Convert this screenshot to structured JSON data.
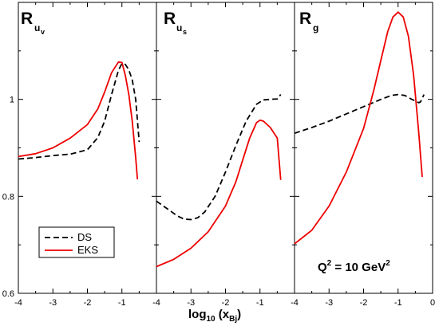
{
  "chart_data": [
    {
      "type": "line",
      "title_main": "R",
      "title_sub": "u",
      "title_subsub": "v",
      "xlim": [
        -4,
        0
      ],
      "ylim": [
        0.6,
        1.2
      ],
      "series": [
        {
          "name": "DS",
          "color": "#000000",
          "dash": true,
          "x": [
            -4.0,
            -3.5,
            -3.0,
            -2.5,
            -2.0,
            -1.7,
            -1.5,
            -1.3,
            -1.1,
            -1.0,
            -0.9,
            -0.8,
            -0.7,
            -0.6,
            -0.5
          ],
          "y": [
            0.877,
            0.88,
            0.884,
            0.887,
            0.896,
            0.921,
            0.955,
            1.01,
            1.06,
            1.074,
            1.072,
            1.061,
            1.04,
            1.0,
            0.912
          ]
        },
        {
          "name": "EKS",
          "color": "#ee0000",
          "dash": false,
          "x": [
            -4.0,
            -3.5,
            -3.0,
            -2.5,
            -2.0,
            -1.7,
            -1.5,
            -1.3,
            -1.1,
            -1.0,
            -0.9,
            -0.8,
            -0.7,
            -0.6,
            -0.55
          ],
          "y": [
            0.882,
            0.888,
            0.9,
            0.92,
            0.948,
            0.98,
            1.015,
            1.055,
            1.077,
            1.076,
            1.049,
            1.01,
            0.955,
            0.88,
            0.835
          ]
        }
      ]
    },
    {
      "type": "line",
      "title_main": "R",
      "title_sub": "u",
      "title_subsub": "s",
      "xlim": [
        -4,
        0
      ],
      "ylim": [
        0.6,
        1.2
      ],
      "series": [
        {
          "name": "DS",
          "color": "#000000",
          "dash": true,
          "x": [
            -4.0,
            -3.7,
            -3.4,
            -3.2,
            -3.0,
            -2.8,
            -2.6,
            -2.3,
            -2.0,
            -1.7,
            -1.4,
            -1.1,
            -0.9,
            -0.7,
            -0.5,
            -0.4
          ],
          "y": [
            0.79,
            0.775,
            0.76,
            0.753,
            0.752,
            0.756,
            0.768,
            0.8,
            0.85,
            0.905,
            0.955,
            0.99,
            0.999,
            1.0,
            1.001,
            1.01
          ]
        },
        {
          "name": "EKS",
          "color": "#ee0000",
          "dash": false,
          "x": [
            -4.0,
            -3.5,
            -3.0,
            -2.5,
            -2.0,
            -1.7,
            -1.5,
            -1.3,
            -1.1,
            -1.0,
            -0.9,
            -0.7,
            -0.5,
            -0.4
          ],
          "y": [
            0.655,
            0.67,
            0.693,
            0.727,
            0.78,
            0.83,
            0.875,
            0.92,
            0.952,
            0.957,
            0.955,
            0.942,
            0.92,
            0.834
          ]
        }
      ]
    },
    {
      "type": "line",
      "title_main": "R",
      "title_sub": "g",
      "xlim": [
        -4,
        0
      ],
      "ylim": [
        0.6,
        1.2
      ],
      "series": [
        {
          "name": "DS",
          "color": "#000000",
          "dash": true,
          "x": [
            -4.0,
            -3.5,
            -3.0,
            -2.5,
            -2.0,
            -1.5,
            -1.2,
            -1.0,
            -0.8,
            -0.6,
            -0.5,
            -0.4,
            -0.35,
            -0.25
          ],
          "y": [
            0.93,
            0.942,
            0.955,
            0.97,
            0.985,
            1.0,
            1.008,
            1.01,
            1.008,
            1.0,
            0.997,
            0.993,
            0.995,
            1.01
          ]
        },
        {
          "name": "EKS",
          "color": "#ee0000",
          "dash": false,
          "x": [
            -4.0,
            -3.5,
            -3.0,
            -2.5,
            -2.0,
            -1.7,
            -1.5,
            -1.3,
            -1.15,
            -1.0,
            -0.85,
            -0.7,
            -0.55,
            -0.4,
            -0.3
          ],
          "y": [
            0.702,
            0.73,
            0.78,
            0.85,
            0.94,
            1.02,
            1.08,
            1.14,
            1.17,
            1.18,
            1.17,
            1.13,
            1.05,
            0.93,
            0.84
          ]
        }
      ]
    }
  ],
  "y_ticks": [
    "0.6",
    "0.8",
    "1"
  ],
  "x_ticks_panels": [
    [
      "-4",
      "-3",
      "-2",
      "-1"
    ],
    [
      "-4",
      "-3",
      "-2",
      "-1"
    ],
    [
      "-4",
      "-3",
      "-2",
      "-1",
      "0"
    ]
  ],
  "x_axis_label": {
    "main": "log",
    "sub1": "10",
    "paren_open": " (x",
    "sub2": "Bj",
    "paren_close": ")"
  },
  "legend": [
    {
      "label": "DS",
      "color": "#000000",
      "dash": true
    },
    {
      "label": "EKS",
      "color": "#ee0000",
      "dash": false
    }
  ],
  "annotation": {
    "q": "Q",
    "q_exp": "2",
    "eq": " = 10 GeV",
    "gev_exp": "2"
  }
}
